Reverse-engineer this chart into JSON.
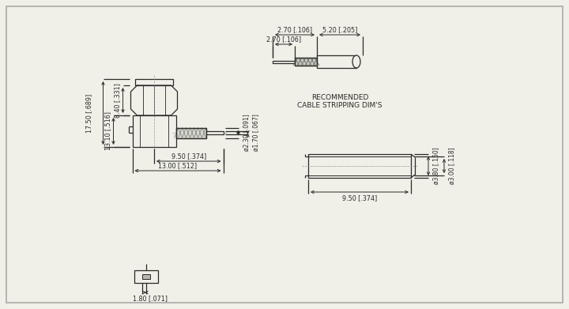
{
  "bg_color": "#f0efe8",
  "line_color": "#2a2a2a",
  "dim_color": "#2a2a2a",
  "text_color": "#2a2a2a",
  "border_color": "#aaaaaa",
  "dims": {
    "main_width_950": "9.50 [.374]",
    "main_width_1300": "13.00 [.512]",
    "main_height_1750": "17.50 [.689]",
    "main_height_1310": "13.10 [.516]",
    "main_height_840": "8.40 [.331]",
    "dia_230": "ø2.30 [.091]",
    "dia_170": "ø1.70 [.067]",
    "cable_270_1": "2.70 [.106]",
    "cable_270_2": "2.70 [.106]",
    "cable_520": "5.20 [.205]",
    "ferr_dia_380": "ø3.80 [.150]",
    "ferr_dia_300": "ø3.00 [.118]",
    "ferr_len_950": "9.50 [.374]",
    "bottom_height_180": "1.80 [.071]",
    "rec_label_1": "RECOMMENDED",
    "rec_label_2": "CABLE STRIPPING DIM'S"
  }
}
